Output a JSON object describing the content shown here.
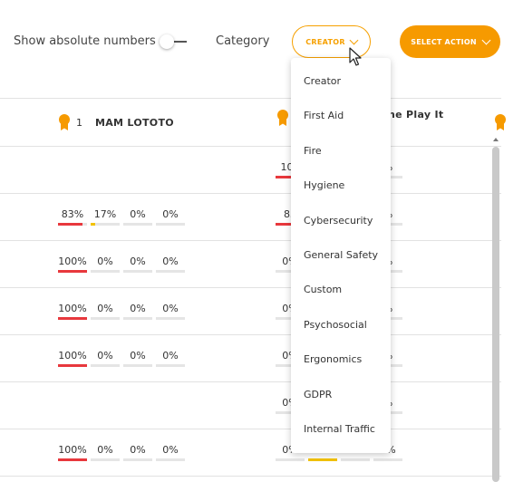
{
  "toolbar": {
    "absolute_label": "Show absolute numbers",
    "category_label": "Category",
    "creator_label": "CREATOR",
    "action_label": "SELECT ACTION"
  },
  "colors": {
    "accent": "#f69a00",
    "red_bar": "#e8383d",
    "yellow_bar": "#f2c200",
    "empty_bar": "#e5e5e5"
  },
  "columns": [
    {
      "rank": "1",
      "name": "MAM LOTOTO"
    },
    {
      "rank": "",
      "name": "he Play It"
    }
  ],
  "rows": [
    {
      "a": null,
      "b": [
        "100",
        "",
        "",
        "%"
      ]
    },
    {
      "a": [
        "83%",
        "17%",
        "0%",
        "0%"
      ],
      "b": [
        "83",
        "",
        "",
        "%"
      ]
    },
    {
      "a": [
        "100%",
        "0%",
        "0%",
        "0%"
      ],
      "b": [
        "0%",
        "",
        "",
        "%"
      ]
    },
    {
      "a": [
        "100%",
        "0%",
        "0%",
        "0%"
      ],
      "b": [
        "0%",
        "",
        "",
        "%"
      ]
    },
    {
      "a": [
        "100%",
        "0%",
        "0%",
        "0%"
      ],
      "b": [
        "0%",
        "",
        "",
        "%"
      ]
    },
    {
      "a": null,
      "b": [
        "0%",
        "",
        "",
        "%"
      ]
    },
    {
      "a": [
        "100%",
        "0%",
        "0%",
        "0%"
      ],
      "b": [
        "0%",
        "100%",
        "0%",
        "0%"
      ]
    }
  ],
  "fills": {
    "r1a": [
      null,
      null,
      null,
      null
    ],
    "r1b": [
      1.0,
      0,
      0,
      0
    ],
    "r2a": [
      0.83,
      0.17,
      0,
      0
    ],
    "r2b": [
      0.83,
      0,
      0,
      0
    ],
    "r3a": [
      1.0,
      0,
      0,
      0
    ],
    "r4a": [
      1.0,
      0,
      0,
      0
    ],
    "r5a": [
      1.0,
      0,
      0,
      0
    ],
    "r7a": [
      1.0,
      0,
      0,
      0
    ],
    "r7b": [
      0,
      1.0,
      0,
      0
    ]
  },
  "dropdown": {
    "items": [
      "Creator",
      "First Aid",
      "Fire",
      "Hygiene",
      "Cybersecurity",
      "General Safety",
      "Custom",
      "Psychosocial",
      "Ergonomics",
      "GDPR",
      "Internal Traffic"
    ]
  },
  "icons": {
    "medal": "medal-icon",
    "chevron": "chevron-down-icon",
    "cursor": "mouse-pointer-icon"
  }
}
